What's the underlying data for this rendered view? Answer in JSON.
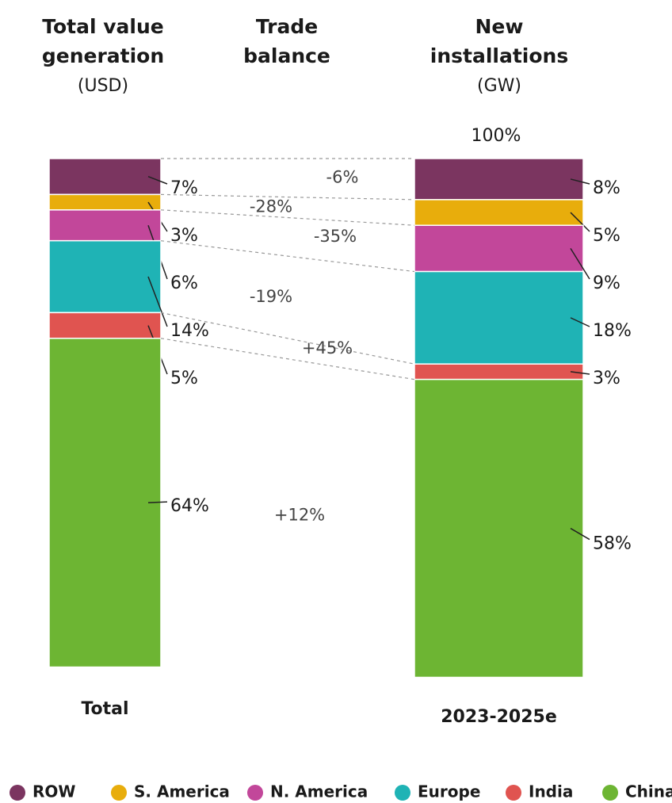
{
  "chart_data": {
    "type": "stacked_bar",
    "columns": [
      {
        "title_lines": [
          "Total value",
          "generation"
        ],
        "unit": "(USD)"
      },
      {
        "title_lines": [
          "Trade",
          "balance"
        ]
      },
      {
        "title_lines": [
          "New",
          "installations"
        ],
        "unit": "(GW)"
      }
    ],
    "categories": [
      "Total",
      "2023-2025e"
    ],
    "total_label": "100%",
    "ylim": [
      0,
      100
    ],
    "series": [
      {
        "name": "ROW",
        "color": "#7b3560",
        "values": [
          7,
          8
        ],
        "value_labels": [
          "7%",
          "8%"
        ]
      },
      {
        "name": "S. America",
        "color": "#e8ad0c",
        "values": [
          3,
          5
        ],
        "value_labels": [
          "3%",
          "5%"
        ]
      },
      {
        "name": "N. America",
        "color": "#c2479a",
        "values": [
          6,
          9
        ],
        "value_labels": [
          "6%",
          "9%"
        ]
      },
      {
        "name": "Europe",
        "color": "#1fb3b5",
        "values": [
          14,
          18
        ],
        "value_labels": [
          "14%",
          "18%"
        ]
      },
      {
        "name": "India",
        "color": "#e05450",
        "values": [
          5,
          3
        ],
        "value_labels": [
          "5%",
          "3%"
        ]
      },
      {
        "name": "China",
        "color": "#6db533",
        "values": [
          64,
          58
        ],
        "value_labels": [
          "64%",
          "58%"
        ]
      }
    ],
    "trade_balance": {
      "values": [
        -6,
        -28,
        -35,
        -19,
        45,
        12
      ],
      "value_labels": [
        "-6%",
        "-28%",
        "-35%",
        "-19%",
        "+45%",
        "+12%"
      ]
    }
  }
}
